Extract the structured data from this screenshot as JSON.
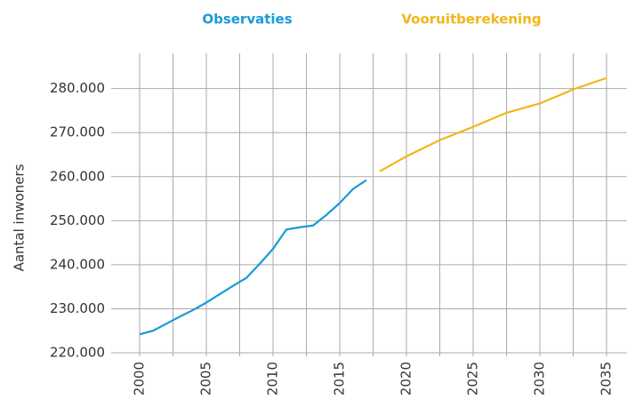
{
  "chart_data": {
    "type": "line",
    "y_label": "Aantal inwoners",
    "xlim": [
      1997.5,
      2036.5
    ],
    "xticks": [
      2000,
      2005,
      2010,
      2015,
      2020,
      2025,
      2030,
      2035
    ],
    "ylim": [
      220000,
      288000
    ],
    "yticks": [
      {
        "value": 220000,
        "label": "220.000"
      },
      {
        "value": 230000,
        "label": "230.000"
      },
      {
        "value": 240000,
        "label": "240.000"
      },
      {
        "value": 250000,
        "label": "250.000"
      },
      {
        "value": 260000,
        "label": "260.000"
      },
      {
        "value": 270000,
        "label": "270.000"
      },
      {
        "value": 280000,
        "label": "280.000"
      }
    ],
    "grid": true,
    "series": [
      {
        "name": "Observaties",
        "color": "#1a9ad6",
        "x": [
          2000,
          2001,
          2002,
          2003,
          2004,
          2005,
          2006,
          2007,
          2008,
          2009,
          2010,
          2011,
          2012,
          2013,
          2014,
          2015,
          2016,
          2017
        ],
        "values": [
          224200,
          225000,
          226600,
          228200,
          229700,
          231400,
          233300,
          235200,
          237000,
          240200,
          243600,
          248000,
          248500,
          248900,
          251300,
          254000,
          257200,
          259200
        ]
      },
      {
        "name": "Vooruitberekening",
        "color": "#f2b619",
        "x": [
          2018,
          2020,
          2022.5,
          2025,
          2027.5,
          2030,
          2032.5,
          2035
        ],
        "values": [
          261200,
          264600,
          268300,
          271300,
          274500,
          276600,
          279800,
          282400
        ]
      }
    ]
  }
}
